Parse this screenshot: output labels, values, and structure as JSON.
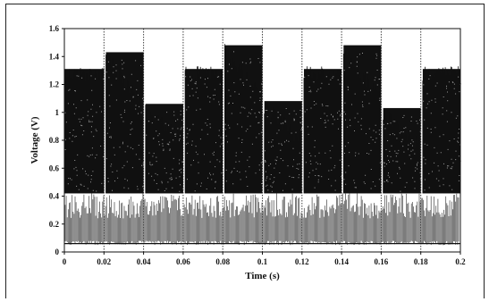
{
  "chart_data": {
    "type": "line",
    "title": "",
    "xlabel": "Time (s)",
    "ylabel": "Voltage (V)",
    "xlim": [
      0,
      0.2
    ],
    "ylim": [
      0,
      1.6
    ],
    "x_ticks": [
      "0",
      "0.02",
      "0.04",
      "0.06",
      "0.08",
      "0.1",
      "0.12",
      "0.14",
      "0.16",
      "0.18",
      "0.2"
    ],
    "y_ticks": [
      "0",
      "0.2",
      "0.4",
      "0.6",
      "0.8",
      "1",
      "1.2",
      "1.4",
      "1.6"
    ],
    "grid": false,
    "vertical_markers_x": [
      0.02,
      0.04,
      0.06,
      0.08,
      0.1,
      0.12,
      0.14,
      0.16,
      0.18
    ],
    "series": [
      {
        "color": "#111111",
        "segments": [
          {
            "x_start": 0.0,
            "x_end": 0.02,
            "y_high": 1.33,
            "y_low": 0.42
          },
          {
            "x_start": 0.021,
            "x_end": 0.04,
            "y_high": 1.45,
            "y_low": 0.42
          },
          {
            "x_start": 0.041,
            "x_end": 0.06,
            "y_high": 1.08,
            "y_low": 0.42
          },
          {
            "x_start": 0.061,
            "x_end": 0.08,
            "y_high": 1.33,
            "y_low": 0.42
          },
          {
            "x_start": 0.081,
            "x_end": 0.1,
            "y_high": 1.5,
            "y_low": 0.42
          },
          {
            "x_start": 0.101,
            "x_end": 0.12,
            "y_high": 1.1,
            "y_low": 0.42
          },
          {
            "x_start": 0.121,
            "x_end": 0.14,
            "y_high": 1.33,
            "y_low": 0.42
          },
          {
            "x_start": 0.141,
            "x_end": 0.16,
            "y_high": 1.5,
            "y_low": 0.42
          },
          {
            "x_start": 0.161,
            "x_end": 0.18,
            "y_high": 1.05,
            "y_low": 0.42
          },
          {
            "x_start": 0.181,
            "x_end": 0.2,
            "y_high": 1.33,
            "y_low": 0.42
          }
        ]
      },
      {
        "color": "#444444",
        "y_high": 0.42,
        "y_low": 0.05,
        "baseline": 0.06
      }
    ]
  }
}
